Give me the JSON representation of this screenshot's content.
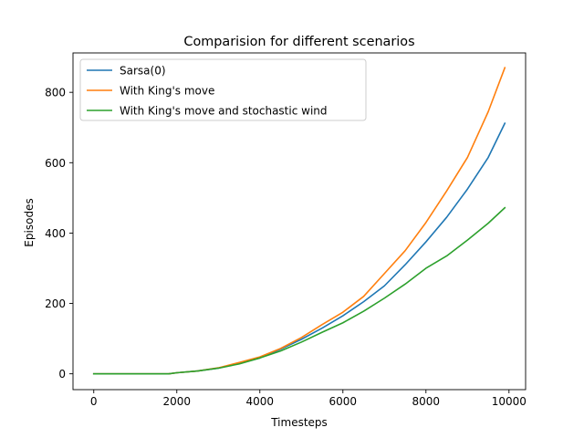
{
  "chart_data": {
    "type": "line",
    "title": "Comparision for different scenarios",
    "xlabel": "Timesteps",
    "ylabel": "Episodes",
    "xlim": [
      -500,
      10400
    ],
    "ylim": [
      -45,
      912
    ],
    "xticks": [
      0,
      2000,
      4000,
      6000,
      8000,
      10000
    ],
    "yticks": [
      0,
      200,
      400,
      600,
      800
    ],
    "xtick_labels": [
      "0",
      "2000",
      "4000",
      "6000",
      "8000",
      "10000"
    ],
    "ytick_labels": [
      "0",
      "200",
      "400",
      "600",
      "800"
    ],
    "grid": false,
    "legend": "upper-left",
    "series": [
      {
        "name": "Sarsa(0)",
        "color": "#1f77b4",
        "x": [
          0,
          1000,
          1800,
          2000,
          2500,
          3000,
          3500,
          4000,
          4500,
          5000,
          5500,
          6000,
          6500,
          7000,
          7500,
          8000,
          8500,
          9000,
          9500,
          9900
        ],
        "y": [
          0,
          0,
          0,
          3,
          8,
          16,
          30,
          45,
          70,
          98,
          130,
          165,
          205,
          250,
          310,
          375,
          445,
          525,
          615,
          712
        ]
      },
      {
        "name": "With King's move",
        "color": "#ff7f0e",
        "x": [
          0,
          1000,
          1800,
          2000,
          2500,
          3000,
          3500,
          4000,
          4500,
          5000,
          5500,
          6000,
          6500,
          7000,
          7500,
          8000,
          8500,
          9000,
          9500,
          9900
        ],
        "y": [
          0,
          0,
          0,
          3,
          8,
          17,
          32,
          48,
          72,
          103,
          140,
          175,
          220,
          285,
          350,
          430,
          520,
          615,
          745,
          870
        ]
      },
      {
        "name": "With King's move and stochastic wind",
        "color": "#2ca02c",
        "x": [
          0,
          1000,
          1800,
          2000,
          2500,
          3000,
          3500,
          4000,
          4500,
          5000,
          5500,
          6000,
          6500,
          7000,
          7500,
          8000,
          8500,
          9000,
          9500,
          9900
        ],
        "y": [
          0,
          0,
          0,
          3,
          8,
          16,
          28,
          45,
          65,
          90,
          118,
          145,
          178,
          215,
          255,
          300,
          335,
          380,
          428,
          472
        ]
      }
    ]
  }
}
